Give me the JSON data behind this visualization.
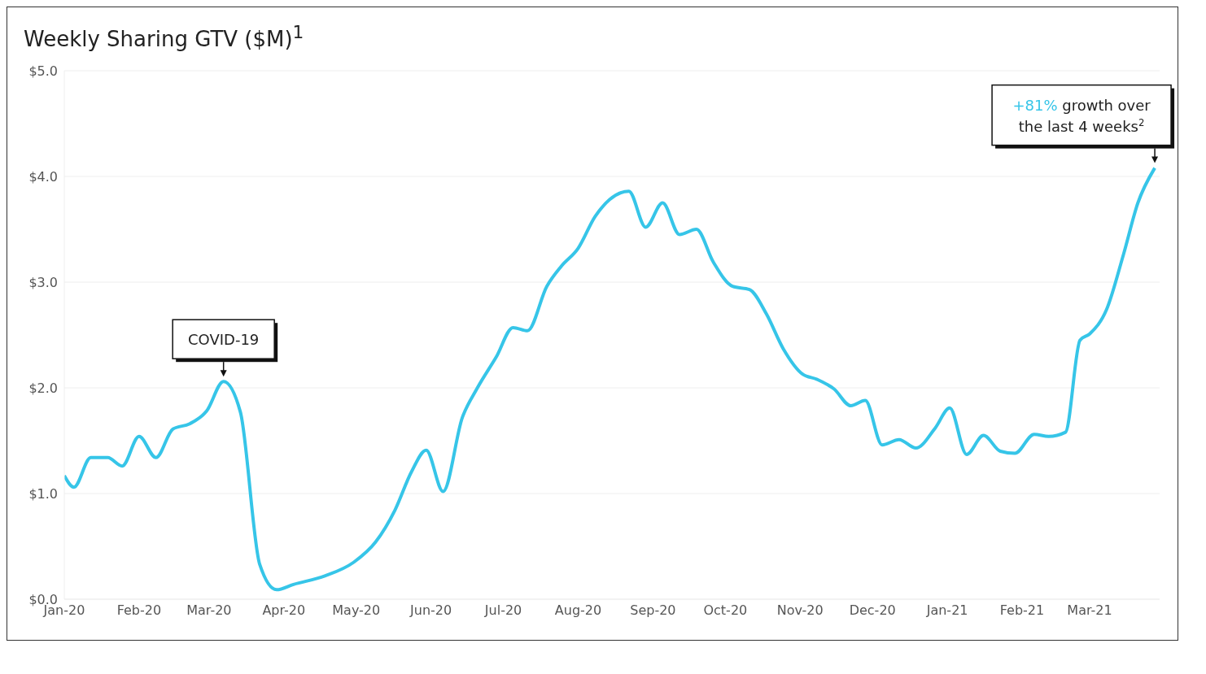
{
  "chart_data": {
    "type": "line",
    "title": "Weekly Sharing GTV ($M)$^{1}$",
    "x": [
      "2020-01-01",
      "2020-01-05",
      "2020-01-12",
      "2020-01-19",
      "2020-01-25",
      "2020-02-01",
      "2020-02-08",
      "2020-02-15",
      "2020-02-22",
      "2020-02-29",
      "2020-03-07",
      "2020-03-14",
      "2020-03-22",
      "2020-03-29",
      "2020-04-05",
      "2020-04-18",
      "2020-04-30",
      "2020-05-09",
      "2020-05-17",
      "2020-05-24",
      "2020-05-30",
      "2020-06-06",
      "2020-06-14",
      "2020-06-20",
      "2020-06-28",
      "2020-07-05",
      "2020-07-11",
      "2020-07-19",
      "2020-07-25",
      "2020-08-01",
      "2020-08-08",
      "2020-08-14",
      "2020-08-22",
      "2020-08-29",
      "2020-09-05",
      "2020-09-12",
      "2020-09-19",
      "2020-09-26",
      "2020-10-04",
      "2020-10-11",
      "2020-10-18",
      "2020-10-25",
      "2020-11-02",
      "2020-11-08",
      "2020-11-15",
      "2020-11-22",
      "2020-11-28",
      "2020-12-05",
      "2020-12-12",
      "2020-12-19",
      "2020-12-27",
      "2021-01-02",
      "2021-01-09",
      "2021-01-16",
      "2021-01-23",
      "2021-01-29",
      "2021-02-06",
      "2021-02-12",
      "2021-02-19",
      "2021-02-25",
      "2021-03-01",
      "2021-03-08",
      "2021-03-15",
      "2021-03-21",
      "2021-03-28"
    ],
    "series": [
      {
        "color": "#36c5e8",
        "values": [
          1.17,
          1.06,
          1.34,
          1.34,
          1.26,
          1.54,
          1.34,
          1.61,
          1.66,
          1.78,
          2.06,
          1.77,
          0.33,
          0.09,
          0.14,
          0.22,
          0.35,
          0.54,
          0.84,
          1.21,
          1.41,
          1.02,
          1.72,
          1.99,
          2.29,
          2.57,
          2.54,
          2.96,
          3.15,
          3.32,
          3.62,
          3.78,
          3.86,
          3.52,
          3.75,
          3.45,
          3.5,
          3.19,
          2.96,
          2.93,
          2.7,
          2.37,
          2.13,
          2.08,
          1.99,
          1.83,
          1.88,
          1.46,
          1.51,
          1.43,
          1.62,
          1.81,
          1.37,
          1.55,
          1.4,
          1.38,
          1.56,
          1.54,
          1.58,
          2.45,
          2.51,
          2.74,
          3.26,
          3.75,
          4.08
        ]
      }
    ],
    "xlim": [
      "2020-01-01",
      "2021-03-30"
    ],
    "xticks": [
      {
        "value": "2020-01-01",
        "label": "Jan-20"
      },
      {
        "value": "2020-02-01",
        "label": "Feb-20"
      },
      {
        "value": "2020-03-01",
        "label": "Mar-20"
      },
      {
        "value": "2020-04-01",
        "label": "Apr-20"
      },
      {
        "value": "2020-05-01",
        "label": "May-20"
      },
      {
        "value": "2020-06-01",
        "label": "Jun-20"
      },
      {
        "value": "2020-07-01",
        "label": "Jul-20"
      },
      {
        "value": "2020-08-01",
        "label": "Aug-20"
      },
      {
        "value": "2020-09-01",
        "label": "Sep-20"
      },
      {
        "value": "2020-10-01",
        "label": "Oct-20"
      },
      {
        "value": "2020-11-01",
        "label": "Nov-20"
      },
      {
        "value": "2020-12-01",
        "label": "Dec-20"
      },
      {
        "value": "2021-01-01",
        "label": "Jan-21"
      },
      {
        "value": "2021-02-01",
        "label": "Feb-21"
      },
      {
        "value": "2021-03-01",
        "label": "Mar-21"
      }
    ],
    "ylim": [
      0,
      5
    ],
    "yticks": [
      {
        "value": 0,
        "label": "$0.0"
      },
      {
        "value": 1,
        "label": "$1.0"
      },
      {
        "value": 2,
        "label": "$2.0"
      },
      {
        "value": 3,
        "label": "$3.0"
      },
      {
        "value": 4,
        "label": "$4.0"
      },
      {
        "value": 5,
        "label": "$5.0"
      }
    ],
    "grid": "y",
    "marker": "none",
    "line_style": "solid",
    "annotations": [
      {
        "text": "COVID-19",
        "x": "2020-03-07",
        "y": 2.06
      },
      {
        "text": "+81% growth over the last 4 weeks$^{2}$",
        "x": "2021-03-28",
        "y": 4.08
      }
    ]
  }
}
